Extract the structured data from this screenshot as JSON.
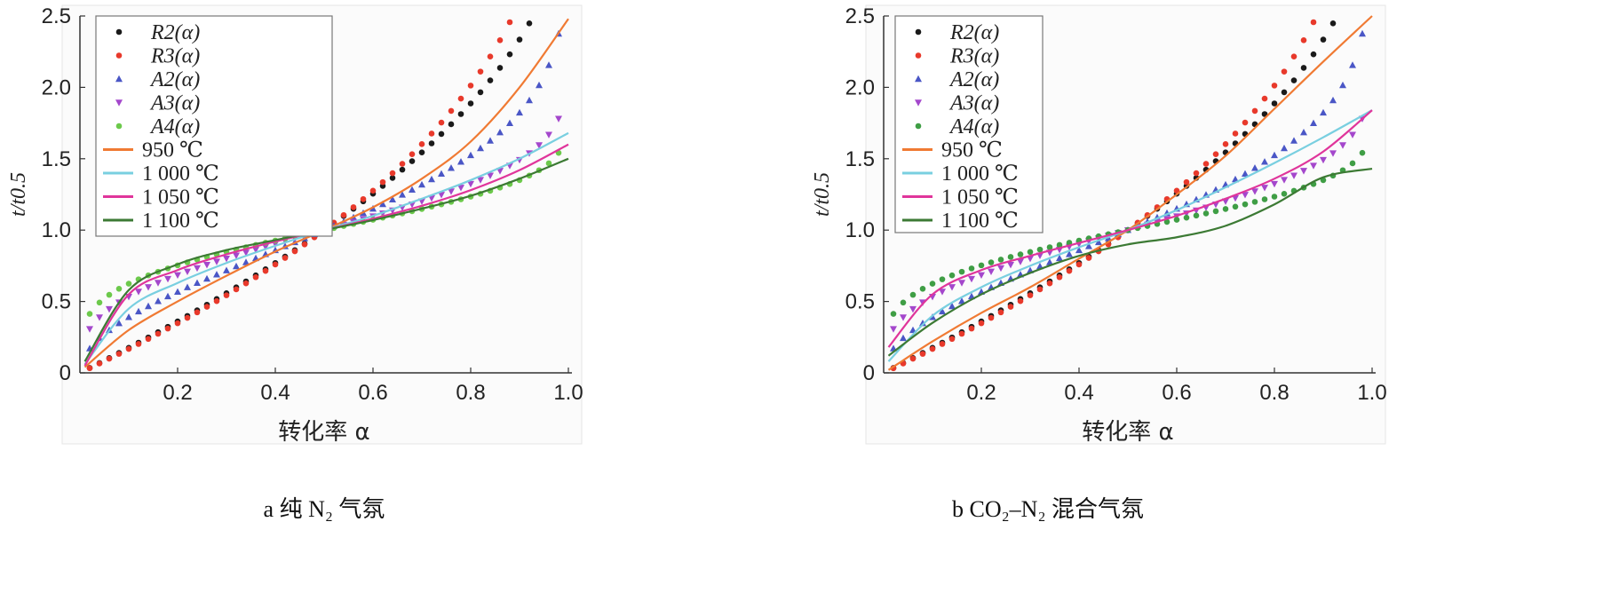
{
  "chart_data": [
    {
      "type": "scatter",
      "title": "",
      "caption": "a 纯 N₂ 气氛",
      "xlabel": "转化率 α",
      "ylabel": "t/t0.5",
      "xlim": [
        0,
        1.0
      ],
      "ylim": [
        0,
        2.5
      ],
      "xticks": [
        "0.2",
        "0.4",
        "0.6",
        "0.8",
        "1.0"
      ],
      "yticks": [
        "0",
        "0.5",
        "1.0",
        "1.5",
        "2.0",
        "2.5"
      ],
      "grid": false,
      "legend_position": "top-left",
      "series": [
        {
          "name": "R2(α)",
          "kind": "marker",
          "marker": "circle",
          "color": "#1a1a1a",
          "fn": "R2"
        },
        {
          "name": "R3(α)",
          "kind": "marker",
          "marker": "circle",
          "color": "#e8392b",
          "fn": "R3"
        },
        {
          "name": "A2(α)",
          "kind": "marker",
          "marker": "triangle-up",
          "color": "#4a56c6",
          "fn": "A2"
        },
        {
          "name": "A3(α)",
          "kind": "marker",
          "marker": "triangle-down",
          "color": "#a447cc",
          "fn": "A3"
        },
        {
          "name": "A4(α)",
          "kind": "marker",
          "marker": "circle",
          "color": "#6cc94b",
          "fn": "A4"
        },
        {
          "name": "950 ℃",
          "kind": "line",
          "color": "#f07a33",
          "x": [
            0.01,
            0.1,
            0.2,
            0.3,
            0.4,
            0.5,
            0.6,
            0.7,
            0.8,
            0.9,
            1.0
          ],
          "y": [
            0.04,
            0.3,
            0.5,
            0.68,
            0.85,
            1.0,
            1.16,
            1.36,
            1.62,
            2.0,
            2.48
          ]
        },
        {
          "name": "1 000 ℃",
          "kind": "line",
          "color": "#79cfe0",
          "x": [
            0.01,
            0.1,
            0.2,
            0.3,
            0.4,
            0.5,
            0.6,
            0.7,
            0.8,
            0.9,
            1.0
          ],
          "y": [
            0.06,
            0.45,
            0.63,
            0.77,
            0.89,
            1.0,
            1.1,
            1.22,
            1.35,
            1.5,
            1.68
          ]
        },
        {
          "name": "1 050 ℃",
          "kind": "line",
          "color": "#e0359b",
          "x": [
            0.01,
            0.1,
            0.2,
            0.3,
            0.4,
            0.5,
            0.6,
            0.7,
            0.8,
            0.9,
            1.0
          ],
          "y": [
            0.05,
            0.55,
            0.72,
            0.83,
            0.92,
            1.0,
            1.08,
            1.17,
            1.28,
            1.42,
            1.6
          ]
        },
        {
          "name": "1 100 ℃",
          "kind": "line",
          "color": "#3c7a34",
          "x": [
            0.01,
            0.1,
            0.2,
            0.3,
            0.4,
            0.5,
            0.6,
            0.7,
            0.8,
            0.9,
            1.0
          ],
          "y": [
            0.08,
            0.58,
            0.76,
            0.86,
            0.93,
            1.0,
            1.07,
            1.15,
            1.24,
            1.36,
            1.5
          ]
        }
      ]
    },
    {
      "type": "scatter",
      "title": "",
      "caption": "b CO₂–N₂ 混合气氛",
      "xlabel": "转化率 α",
      "ylabel": "t/t0.5",
      "xlim": [
        0,
        1.0
      ],
      "ylim": [
        0,
        2.5
      ],
      "xticks": [
        "0.2",
        "0.4",
        "0.6",
        "0.8",
        "1.0"
      ],
      "yticks": [
        "0",
        "0.5",
        "1.0",
        "1.5",
        "2.0",
        "2.5"
      ],
      "grid": false,
      "legend_position": "top-left",
      "series": [
        {
          "name": "R2(α)",
          "kind": "marker",
          "marker": "circle",
          "color": "#1a1a1a",
          "fn": "R2"
        },
        {
          "name": "R3(α)",
          "kind": "marker",
          "marker": "circle",
          "color": "#e8392b",
          "fn": "R3"
        },
        {
          "name": "A2(α)",
          "kind": "marker",
          "marker": "triangle-up",
          "color": "#4a56c6",
          "fn": "A2"
        },
        {
          "name": "A3(α)",
          "kind": "marker",
          "marker": "triangle-down",
          "color": "#a447cc",
          "fn": "A3"
        },
        {
          "name": "A4(α)",
          "kind": "marker",
          "marker": "circle",
          "color": "#3f9e45",
          "fn": "A4"
        },
        {
          "name": "950 ℃",
          "kind": "line",
          "color": "#f07a33",
          "x": [
            0.01,
            0.1,
            0.2,
            0.3,
            0.4,
            0.5,
            0.6,
            0.7,
            0.8,
            0.9,
            1.0
          ],
          "y": [
            0.02,
            0.22,
            0.42,
            0.6,
            0.8,
            1.0,
            1.25,
            1.52,
            1.85,
            2.18,
            2.5
          ]
        },
        {
          "name": "1 000 ℃",
          "kind": "line",
          "color": "#79cfe0",
          "x": [
            0.01,
            0.1,
            0.2,
            0.3,
            0.4,
            0.5,
            0.6,
            0.7,
            0.8,
            0.9,
            1.0
          ],
          "y": [
            0.08,
            0.4,
            0.6,
            0.75,
            0.88,
            1.0,
            1.14,
            1.3,
            1.47,
            1.65,
            1.84
          ]
        },
        {
          "name": "1 050 ℃",
          "kind": "line",
          "color": "#e0359b",
          "x": [
            0.01,
            0.1,
            0.2,
            0.3,
            0.4,
            0.5,
            0.6,
            0.7,
            0.8,
            0.9,
            1.0
          ],
          "y": [
            0.18,
            0.55,
            0.72,
            0.82,
            0.91,
            1.0,
            1.1,
            1.22,
            1.36,
            1.55,
            1.84
          ]
        },
        {
          "name": "1 100 ℃",
          "kind": "line",
          "color": "#3c7a34",
          "x": [
            0.01,
            0.1,
            0.2,
            0.3,
            0.4,
            0.5,
            0.6,
            0.7,
            0.8,
            0.9,
            1.0
          ],
          "y": [
            0.12,
            0.35,
            0.55,
            0.7,
            0.82,
            0.9,
            0.95,
            1.03,
            1.18,
            1.37,
            1.43
          ]
        }
      ]
    }
  ]
}
